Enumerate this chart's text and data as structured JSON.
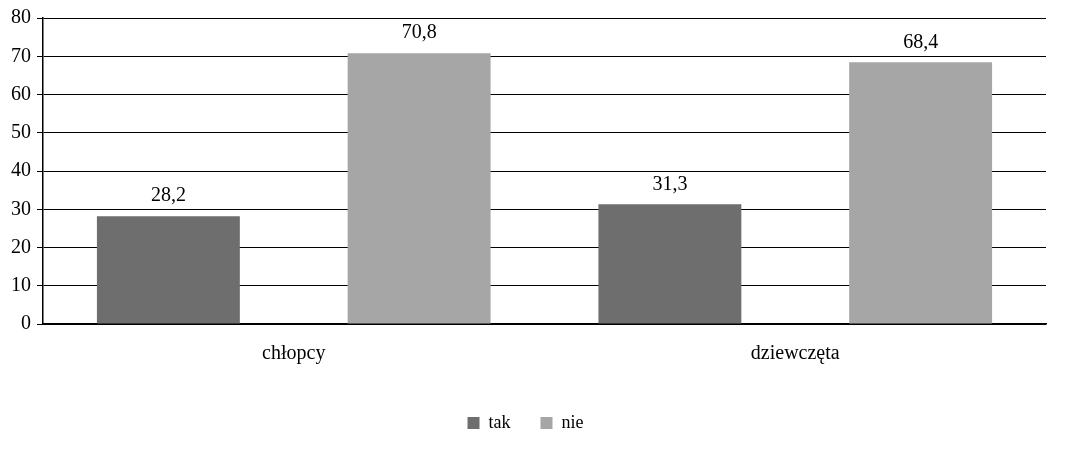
{
  "chart_data": {
    "type": "bar",
    "categories": [
      "chłopcy",
      "dziewczęta"
    ],
    "series": [
      {
        "name": "tak",
        "color": "#6e6e6e",
        "values": [
          28.2,
          31.3
        ],
        "value_labels": [
          "28,2",
          "31,3"
        ]
      },
      {
        "name": "nie",
        "color": "#a6a6a6",
        "values": [
          70.8,
          68.4
        ],
        "value_labels": [
          "70,8",
          "68,4"
        ]
      }
    ],
    "ylim": [
      0,
      80
    ],
    "yticks": [
      0,
      10,
      20,
      30,
      40,
      50,
      60,
      70,
      80
    ],
    "grid": "y",
    "legend": "bottom"
  }
}
